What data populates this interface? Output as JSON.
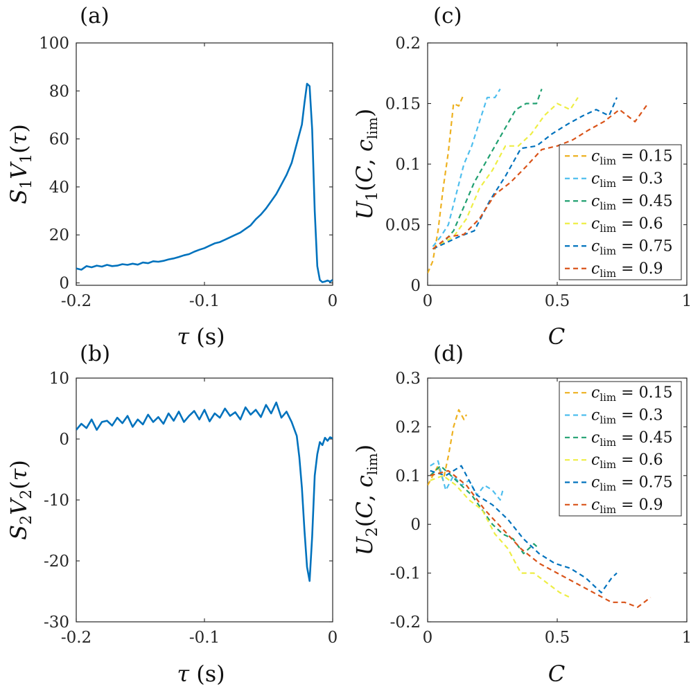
{
  "chart_data": [
    {
      "id": "a",
      "type": "line",
      "panel_label": "(a)",
      "xlabel": "τ (s)",
      "ylabel": "S1V1(τ)",
      "xlim": [
        -0.2,
        0
      ],
      "ylim": [
        -1,
        100
      ],
      "xticks": [
        -0.2,
        -0.1,
        0
      ],
      "xtick_labels": [
        "-0.2",
        "-0.1",
        "0"
      ],
      "yticks": [
        0,
        20,
        40,
        60,
        80,
        100
      ],
      "ytick_labels": [
        "0",
        "20",
        "40",
        "60",
        "80",
        "100"
      ],
      "series": [
        {
          "name": "S1V1",
          "color": "#0072BD",
          "dash": "solid",
          "x": [
            -0.2,
            -0.196,
            -0.192,
            -0.188,
            -0.184,
            -0.18,
            -0.176,
            -0.172,
            -0.168,
            -0.164,
            -0.16,
            -0.156,
            -0.152,
            -0.148,
            -0.144,
            -0.14,
            -0.136,
            -0.132,
            -0.128,
            -0.124,
            -0.12,
            -0.116,
            -0.112,
            -0.108,
            -0.104,
            -0.1,
            -0.096,
            -0.092,
            -0.088,
            -0.084,
            -0.08,
            -0.076,
            -0.072,
            -0.068,
            -0.064,
            -0.06,
            -0.056,
            -0.052,
            -0.048,
            -0.044,
            -0.04,
            -0.036,
            -0.032,
            -0.028,
            -0.024,
            -0.022,
            -0.02,
            -0.018,
            -0.016,
            -0.014,
            -0.012,
            -0.01,
            -0.008,
            -0.006,
            -0.004,
            -0.002,
            0
          ],
          "y": [
            6,
            5.5,
            7,
            6.5,
            7.2,
            6.8,
            7.5,
            7,
            7.2,
            7.8,
            7.5,
            8,
            7.6,
            8.5,
            8.2,
            9,
            8.8,
            9.2,
            9.8,
            10.2,
            10.8,
            11.5,
            12,
            13,
            13.8,
            14.5,
            15.5,
            16.5,
            17,
            18,
            19,
            20,
            21,
            22.5,
            24,
            26.5,
            28.5,
            31,
            34,
            37,
            41,
            45,
            50,
            58,
            66,
            75,
            83,
            82,
            64,
            30,
            7,
            1.2,
            0.3,
            0.6,
            1,
            0.5,
            1.3
          ]
        }
      ]
    },
    {
      "id": "b",
      "type": "line",
      "panel_label": "(b)",
      "xlabel": "τ (s)",
      "ylabel": "S2V2(τ)",
      "xlim": [
        -0.2,
        0
      ],
      "ylim": [
        -30,
        10
      ],
      "xticks": [
        -0.2,
        -0.1,
        0
      ],
      "xtick_labels": [
        "-0.2",
        "-0.1",
        "0"
      ],
      "yticks": [
        -30,
        -20,
        -10,
        0,
        10
      ],
      "ytick_labels": [
        "-30",
        "-20",
        "-10",
        "0",
        "10"
      ],
      "series": [
        {
          "name": "S2V2",
          "color": "#0072BD",
          "dash": "solid",
          "x": [
            -0.2,
            -0.196,
            -0.192,
            -0.188,
            -0.184,
            -0.18,
            -0.176,
            -0.172,
            -0.168,
            -0.164,
            -0.16,
            -0.156,
            -0.152,
            -0.148,
            -0.144,
            -0.14,
            -0.136,
            -0.132,
            -0.128,
            -0.124,
            -0.12,
            -0.116,
            -0.112,
            -0.108,
            -0.104,
            -0.1,
            -0.096,
            -0.092,
            -0.088,
            -0.084,
            -0.08,
            -0.076,
            -0.072,
            -0.068,
            -0.064,
            -0.06,
            -0.056,
            -0.052,
            -0.048,
            -0.044,
            -0.04,
            -0.036,
            -0.032,
            -0.028,
            -0.026,
            -0.024,
            -0.022,
            -0.02,
            -0.018,
            -0.016,
            -0.014,
            -0.012,
            -0.01,
            -0.008,
            -0.006,
            -0.004,
            -0.002,
            0
          ],
          "y": [
            1.5,
            2.5,
            1.8,
            3.2,
            1.5,
            2.8,
            3.0,
            2.2,
            3.5,
            2.6,
            3.8,
            2.0,
            3.2,
            2.4,
            4.0,
            2.8,
            3.6,
            2.5,
            4.2,
            3.0,
            4.5,
            2.8,
            3.8,
            4.6,
            3.2,
            4.8,
            2.9,
            4.2,
            3.5,
            5.0,
            3.8,
            4.4,
            3.2,
            5.2,
            4.0,
            4.8,
            3.6,
            5.6,
            4.2,
            6.0,
            3.5,
            4.5,
            2.8,
            0.5,
            -3.0,
            -8.0,
            -15.0,
            -21.0,
            -23.3,
            -16.0,
            -6.0,
            -2.5,
            -0.5,
            -1.0,
            0.2,
            -0.3,
            0.3,
            0.1
          ]
        }
      ]
    },
    {
      "id": "c",
      "type": "line",
      "panel_label": "(c)",
      "xlabel": "C",
      "ylabel": "U1(C, clim)",
      "xlim": [
        0,
        1
      ],
      "ylim": [
        0,
        0.2
      ],
      "xticks": [
        0,
        0.5,
        1
      ],
      "xtick_labels": [
        "0",
        "0.5",
        "1"
      ],
      "yticks": [
        0,
        0.05,
        0.1,
        0.15,
        0.2
      ],
      "ytick_labels": [
        "0",
        "0.05",
        "0.1",
        "0.15",
        "0.2"
      ],
      "legend_position": "right",
      "series": [
        {
          "name": "c_lim = 0.15",
          "legend_value": "= 0.15",
          "color": "#EDB120",
          "dash": "dashed",
          "x": [
            0,
            0.02,
            0.04,
            0.06,
            0.08,
            0.1,
            0.12,
            0.14
          ],
          "y": [
            0.01,
            0.02,
            0.045,
            0.08,
            0.11,
            0.15,
            0.148,
            0.158
          ]
        },
        {
          "name": "c_lim = 0.3",
          "legend_value": "= 0.3",
          "color": "#4DBEEE",
          "dash": "dashed",
          "x": [
            0.02,
            0.05,
            0.08,
            0.11,
            0.14,
            0.17,
            0.2,
            0.23,
            0.26,
            0.28
          ],
          "y": [
            0.032,
            0.04,
            0.05,
            0.075,
            0.1,
            0.115,
            0.135,
            0.155,
            0.155,
            0.162
          ]
        },
        {
          "name": "c_lim = 0.45",
          "legend_value": "= 0.45",
          "color": "#20A070",
          "dash": "dashed",
          "x": [
            0.02,
            0.06,
            0.1,
            0.14,
            0.18,
            0.22,
            0.26,
            0.3,
            0.34,
            0.38,
            0.42,
            0.44
          ],
          "y": [
            0.03,
            0.035,
            0.045,
            0.065,
            0.085,
            0.1,
            0.115,
            0.13,
            0.145,
            0.15,
            0.15,
            0.162
          ]
        },
        {
          "name": "c_lim = 0.6",
          "legend_value": "= 0.6",
          "color": "#EEEE44",
          "dash": "dashed",
          "x": [
            0.02,
            0.06,
            0.1,
            0.15,
            0.2,
            0.25,
            0.3,
            0.35,
            0.4,
            0.45,
            0.5,
            0.55,
            0.58
          ],
          "y": [
            0.03,
            0.035,
            0.04,
            0.055,
            0.08,
            0.095,
            0.115,
            0.115,
            0.125,
            0.14,
            0.15,
            0.145,
            0.155
          ]
        },
        {
          "name": "c_lim = 0.75",
          "legend_value": "= 0.75",
          "color": "#0072BD",
          "dash": "dashed",
          "x": [
            0.02,
            0.07,
            0.12,
            0.18,
            0.24,
            0.3,
            0.36,
            0.42,
            0.48,
            0.54,
            0.6,
            0.65,
            0.7,
            0.73
          ],
          "y": [
            0.03,
            0.035,
            0.04,
            0.045,
            0.07,
            0.09,
            0.113,
            0.115,
            0.125,
            0.133,
            0.14,
            0.145,
            0.14,
            0.155
          ]
        },
        {
          "name": "c_lim = 0.9",
          "legend_value": "= 0.9",
          "color": "#D95319",
          "dash": "dashed",
          "x": [
            0.02,
            0.08,
            0.14,
            0.2,
            0.26,
            0.32,
            0.38,
            0.44,
            0.5,
            0.56,
            0.62,
            0.68,
            0.74,
            0.8,
            0.85
          ],
          "y": [
            0.03,
            0.04,
            0.042,
            0.055,
            0.075,
            0.085,
            0.098,
            0.112,
            0.115,
            0.12,
            0.128,
            0.135,
            0.145,
            0.135,
            0.15
          ]
        }
      ]
    },
    {
      "id": "d",
      "type": "line",
      "panel_label": "(d)",
      "xlabel": "C",
      "ylabel": "U2(C, clim)",
      "xlim": [
        0,
        1
      ],
      "ylim": [
        -0.2,
        0.3
      ],
      "xticks": [
        0,
        0.5,
        1
      ],
      "xtick_labels": [
        "0",
        "0.5",
        "1"
      ],
      "yticks": [
        -0.2,
        -0.1,
        0,
        0.1,
        0.2,
        0.3
      ],
      "ytick_labels": [
        "-0.2",
        "-0.1",
        "0",
        "0.1",
        "0.2",
        "0.3"
      ],
      "legend_position": "top-right",
      "series": [
        {
          "name": "c_lim = 0.15",
          "legend_value": "= 0.15",
          "color": "#EDB120",
          "dash": "dashed",
          "x": [
            0,
            0.02,
            0.04,
            0.06,
            0.08,
            0.1,
            0.12,
            0.14,
            0.15
          ],
          "y": [
            0.08,
            0.1,
            0.12,
            0.09,
            0.14,
            0.2,
            0.235,
            0.215,
            0.225
          ]
        },
        {
          "name": "c_lim = 0.3",
          "legend_value": "= 0.3",
          "color": "#4DBEEE",
          "dash": "dashed",
          "x": [
            0.01,
            0.04,
            0.07,
            0.1,
            0.13,
            0.16,
            0.19,
            0.22,
            0.25,
            0.28,
            0.29
          ],
          "y": [
            0.12,
            0.13,
            0.07,
            0.1,
            0.08,
            0.09,
            0.06,
            0.08,
            0.07,
            0.05,
            0.07
          ]
        },
        {
          "name": "c_lim = 0.45",
          "legend_value": "= 0.45",
          "color": "#20A070",
          "dash": "dashed",
          "x": [
            0.01,
            0.05,
            0.09,
            0.13,
            0.17,
            0.21,
            0.25,
            0.29,
            0.33,
            0.37,
            0.41,
            0.43
          ],
          "y": [
            0.1,
            0.12,
            0.1,
            0.08,
            0.06,
            0.03,
            0.0,
            -0.02,
            -0.03,
            -0.06,
            -0.04,
            -0.05
          ]
        },
        {
          "name": "c_lim = 0.6",
          "legend_value": "= 0.6",
          "color": "#EEEE44",
          "dash": "dashed",
          "x": [
            0.01,
            0.06,
            0.11,
            0.16,
            0.21,
            0.26,
            0.31,
            0.36,
            0.41,
            0.46,
            0.51,
            0.55
          ],
          "y": [
            0.09,
            0.1,
            0.08,
            0.05,
            0.03,
            -0.02,
            -0.05,
            -0.1,
            -0.1,
            -0.12,
            -0.14,
            -0.15
          ]
        },
        {
          "name": "c_lim = 0.75",
          "legend_value": "= 0.75",
          "color": "#0072BD",
          "dash": "dashed",
          "x": [
            0.01,
            0.07,
            0.13,
            0.19,
            0.25,
            0.31,
            0.37,
            0.43,
            0.49,
            0.55,
            0.61,
            0.67,
            0.71,
            0.73
          ],
          "y": [
            0.11,
            0.1,
            0.12,
            0.06,
            0.04,
            0.01,
            -0.03,
            -0.06,
            -0.08,
            -0.09,
            -0.11,
            -0.14,
            -0.11,
            -0.1
          ]
        },
        {
          "name": "c_lim = 0.9",
          "legend_value": "= 0.9",
          "color": "#D95319",
          "dash": "dashed",
          "x": [
            0.01,
            0.08,
            0.15,
            0.22,
            0.29,
            0.36,
            0.43,
            0.5,
            0.57,
            0.64,
            0.71,
            0.76,
            0.81,
            0.86
          ],
          "y": [
            0.1,
            0.11,
            0.08,
            0.03,
            -0.01,
            -0.05,
            -0.08,
            -0.1,
            -0.12,
            -0.14,
            -0.16,
            -0.16,
            -0.17,
            -0.15
          ]
        }
      ]
    }
  ]
}
